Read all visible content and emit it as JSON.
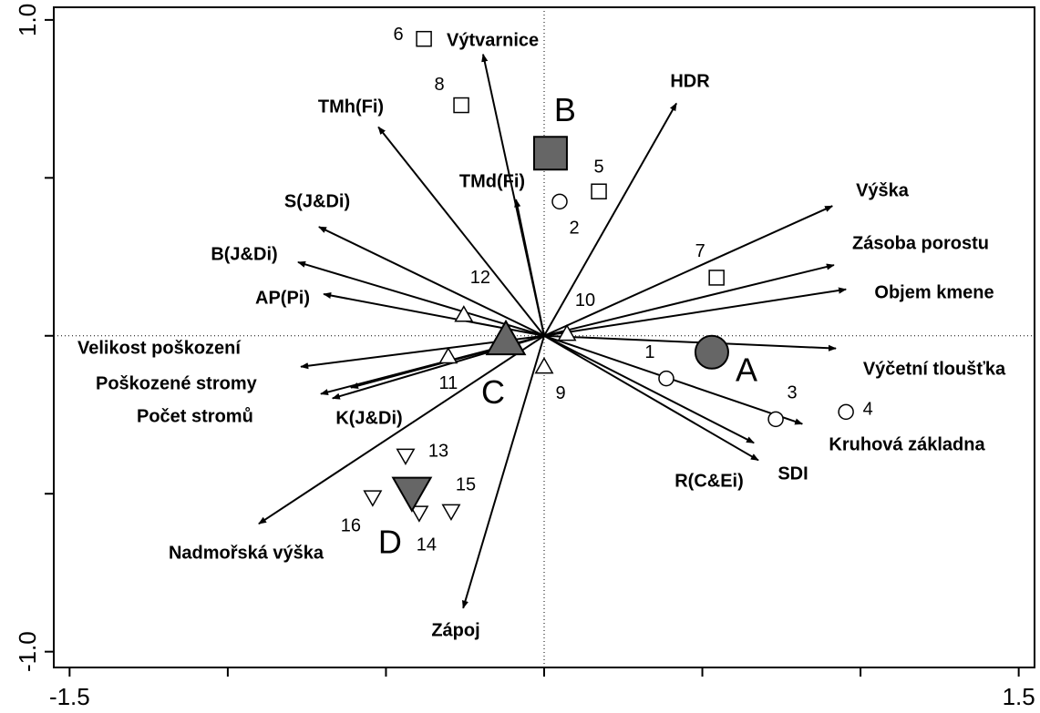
{
  "chart_data": {
    "type": "biplot",
    "xlim": [
      -1.55,
      1.55
    ],
    "ylim": [
      -1.05,
      1.04
    ],
    "xticks": [
      {
        "value": -1.5,
        "label": "-1.5"
      },
      {
        "value": -1.0,
        "label": null
      },
      {
        "value": -0.5,
        "label": null
      },
      {
        "value": 0,
        "label": null
      },
      {
        "value": 0.5,
        "label": null
      },
      {
        "value": 1.0,
        "label": null
      },
      {
        "value": 1.5,
        "label": "1.5"
      }
    ],
    "yticks": [
      {
        "value": -1.0,
        "label": "-1.0"
      },
      {
        "value": -0.5,
        "label": null
      },
      {
        "value": 0,
        "label": null
      },
      {
        "value": 0.5,
        "label": null
      },
      {
        "value": 1.0,
        "label": "1.0"
      }
    ],
    "arrow_color": "#000000",
    "centroid_color": "#666666",
    "vectors": [
      {
        "name": "Výtvarnice",
        "x": -0.193,
        "y": 0.891
      },
      {
        "name": "HDR",
        "x": 0.418,
        "y": 0.736
      },
      {
        "name": "TMh(Fi)",
        "x": -0.524,
        "y": 0.661
      },
      {
        "name": "TMd(Fi)",
        "x": -0.089,
        "y": 0.431
      },
      {
        "name": "S(J&Di)",
        "x": -0.712,
        "y": 0.345
      },
      {
        "name": "B(J&Di)",
        "x": -0.778,
        "y": 0.233
      },
      {
        "name": "AP(Pi)",
        "x": -0.697,
        "y": 0.132
      },
      {
        "name": "Velikost poškození",
        "x": -0.769,
        "y": -0.098
      },
      {
        "name": "Poškozené stromy",
        "x": -0.706,
        "y": -0.184
      },
      {
        "name": "Počet stromů",
        "x": -0.669,
        "y": -0.198
      },
      {
        "name": "K(J&Di)",
        "x": -0.611,
        "y": -0.164
      },
      {
        "name": "Nadmořská výška",
        "x": -0.902,
        "y": -0.595
      },
      {
        "name": "Zápoj",
        "x": -0.256,
        "y": -0.862
      },
      {
        "name": "Výška",
        "x": 0.911,
        "y": 0.411
      },
      {
        "name": "Zásoba porostu",
        "x": 0.916,
        "y": 0.224
      },
      {
        "name": "Objem kmene",
        "x": 0.954,
        "y": 0.147
      },
      {
        "name": "Výčetní tloušťka",
        "x": 0.922,
        "y": -0.04
      },
      {
        "name": "Kruhová základna",
        "x": 0.816,
        "y": -0.279
      },
      {
        "name": "SDI",
        "x": 0.677,
        "y": -0.394
      },
      {
        "name": "R(C&Ei)",
        "x": 0.663,
        "y": -0.339
      }
    ],
    "samples": [
      {
        "label": "1",
        "shape": "circle",
        "x": 0.386,
        "y": -0.135
      },
      {
        "label": "2",
        "shape": "circle",
        "x": 0.049,
        "y": 0.425
      },
      {
        "label": "3",
        "shape": "circle",
        "x": 0.732,
        "y": -0.264
      },
      {
        "label": "4",
        "shape": "circle",
        "x": 0.954,
        "y": -0.241
      },
      {
        "label": "5",
        "shape": "square",
        "x": 0.173,
        "y": 0.457
      },
      {
        "label": "6",
        "shape": "square",
        "x": -0.38,
        "y": 0.94
      },
      {
        "label": "7",
        "shape": "square",
        "x": 0.545,
        "y": 0.184
      },
      {
        "label": "8",
        "shape": "square",
        "x": -0.262,
        "y": 0.73
      },
      {
        "label": "9",
        "shape": "triangle-up",
        "x": 0.0,
        "y": -0.098
      },
      {
        "label": "10",
        "shape": "triangle-up",
        "x": 0.072,
        "y": 0.006
      },
      {
        "label": "11",
        "shape": "triangle-up",
        "x": -0.303,
        "y": -0.066
      },
      {
        "label": "12",
        "shape": "triangle-up",
        "x": -0.254,
        "y": 0.066
      },
      {
        "label": "13",
        "shape": "triangle-down",
        "x": -0.438,
        "y": -0.379
      },
      {
        "label": "14",
        "shape": "triangle-down",
        "x": -0.395,
        "y": -0.56
      },
      {
        "label": "15",
        "shape": "triangle-down",
        "x": -0.294,
        "y": -0.555
      },
      {
        "label": "16",
        "shape": "triangle-down",
        "x": -0.542,
        "y": -0.511
      }
    ],
    "centroids": [
      {
        "label": "A",
        "shape": "circle",
        "x": 0.53,
        "y": -0.052
      },
      {
        "label": "B",
        "shape": "square",
        "x": 0.02,
        "y": 0.578
      },
      {
        "label": "C",
        "shape": "triangle-up",
        "x": -0.121,
        "y": -0.014
      },
      {
        "label": "D",
        "shape": "triangle-down",
        "x": -0.418,
        "y": -0.494
      }
    ]
  }
}
